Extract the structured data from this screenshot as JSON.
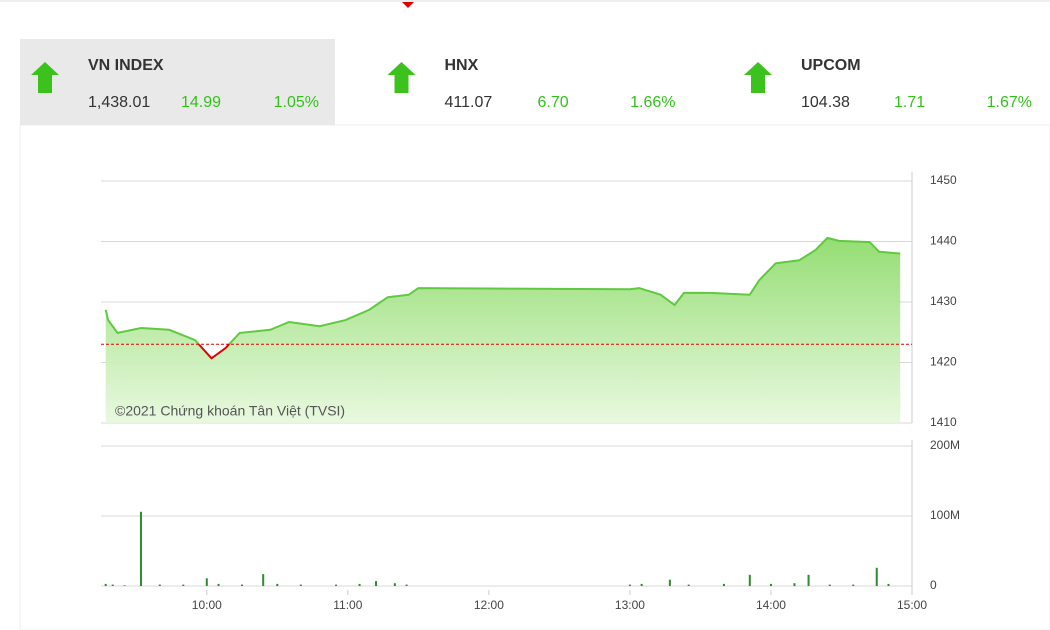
{
  "indices": [
    {
      "name": "VN INDEX",
      "value": "1,438.01",
      "change": "14.99",
      "percent": "1.05%",
      "selected": true
    },
    {
      "name": "HNX",
      "value": "411.07",
      "change": "6.70",
      "percent": "1.66%",
      "selected": false
    },
    {
      "name": "UPCOM",
      "value": "104.38",
      "change": "1.71",
      "percent": "1.67%",
      "selected": false
    }
  ],
  "chart_data": [
    {
      "type": "area",
      "watermark": "©2021 Chứng khoán Tân Việt (TVSI)",
      "x": [
        "09:17",
        "09:18",
        "09:22",
        "09:32",
        "09:44",
        "09:55",
        "10:02",
        "10:08",
        "10:14",
        "10:27",
        "10:35",
        "10:48",
        "10:59",
        "11:09",
        "11:17",
        "11:26",
        "11:30",
        "13:00",
        "13:04",
        "13:13",
        "13:19",
        "13:23",
        "13:34",
        "13:51",
        "13:55",
        "14:02",
        "14:12",
        "14:19",
        "14:24",
        "14:29",
        "14:42",
        "14:46",
        "14:55"
      ],
      "series": [
        {
          "name": "VN INDEX",
          "color": "#5fc93f",
          "fill": "#9fe27f",
          "below_color": "#e00000",
          "values": [
            1428.7,
            1427.0,
            1424.9,
            1425.7,
            1425.4,
            1423.7,
            1420.7,
            1422.4,
            1424.9,
            1425.4,
            1426.7,
            1426.0,
            1427.0,
            1428.7,
            1430.8,
            1431.2,
            1432.3,
            1432.1,
            1432.3,
            1431.2,
            1429.5,
            1431.5,
            1431.5,
            1431.2,
            1433.6,
            1436.4,
            1436.9,
            1438.6,
            1440.6,
            1440.1,
            1439.9,
            1438.3,
            1438.01
          ]
        }
      ],
      "reference_line": 1423.02,
      "xlim": [
        "09:15",
        "15:00"
      ],
      "ylim": [
        1410,
        1450
      ],
      "yticks": [
        1410,
        1420,
        1430,
        1440,
        1450
      ],
      "grid": true
    },
    {
      "type": "bar",
      "x": [
        "09:17",
        "09:20",
        "09:25",
        "09:32",
        "09:40",
        "09:50",
        "10:00",
        "10:05",
        "10:15",
        "10:24",
        "10:30",
        "10:40",
        "10:55",
        "11:05",
        "11:12",
        "11:20",
        "11:25",
        "13:00",
        "13:05",
        "13:17",
        "13:25",
        "13:40",
        "13:51",
        "14:00",
        "14:10",
        "14:16",
        "14:25",
        "14:35",
        "14:45",
        "14:50"
      ],
      "values": [
        3000000,
        2000000,
        1000000,
        106000000,
        2000000,
        2000000,
        11000000,
        3000000,
        2000000,
        17000000,
        3000000,
        2000000,
        2000000,
        3000000,
        7000000,
        4000000,
        2000000,
        2000000,
        3000000,
        9000000,
        2000000,
        3000000,
        16000000,
        3000000,
        4000000,
        16000000,
        2000000,
        2000000,
        26000000,
        3000000
      ],
      "color": "#2e8b2e",
      "xlim": [
        "09:15",
        "15:00"
      ],
      "ylim": [
        0,
        200000000
      ],
      "yticks": [
        0,
        {
          "value": 100000000,
          "label": "100M"
        },
        {
          "value": 200000000,
          "label": "200M"
        }
      ],
      "xticks": [
        "10:00",
        "11:00",
        "12:00",
        "13:00",
        "14:00",
        "15:00"
      ],
      "grid": true
    }
  ]
}
